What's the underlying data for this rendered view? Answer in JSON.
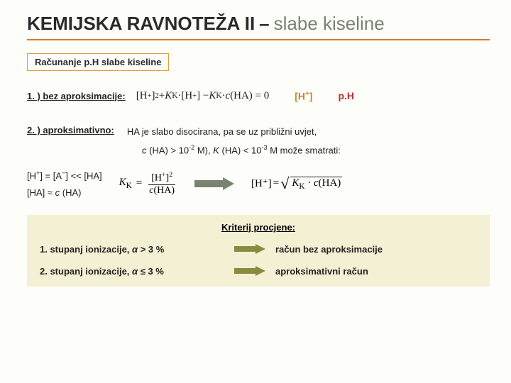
{
  "title": {
    "bold": "KEMIJSKA RAVNOTEŽA II",
    "dash": "–",
    "light": " slabe kiseline"
  },
  "subtitle": "Računanje p.H slabe kiseline",
  "sec1": {
    "label": "1. ) bez aproksimacije:",
    "formula": "[H⁺]² + K_K·[H⁺] − K_K·c(HA) = 0",
    "hplus": "[H⁺]",
    "ph": "p.H"
  },
  "sec2": {
    "label": "2. ) aproksimativno:",
    "text1": "HA je slabo disocirana, pa se uz približni uvjet,",
    "text2_a": "c",
    "text2_b": " (HA) > 10",
    "text2_c": "-2",
    "text2_d": " M), ",
    "text2_e": "K",
    "text2_f": " (HA) < 10",
    "text2_g": "-3",
    "text2_h": " M može smatrati:"
  },
  "approx": {
    "line1": "[H⁺] = [A⁻] << [HA]",
    "line2_a": "[HA] ≈ ",
    "line2_b": "c",
    "line2_c": " (HA)"
  },
  "kk": {
    "lhs": "K",
    "lhs_sub": "K",
    "eq": " = ",
    "top": "[H⁺]²",
    "bot_a": "c",
    "bot_b": "(HA)"
  },
  "result": {
    "lhs": "[H⁺]",
    "eq": " = ",
    "inside_a": "K",
    "inside_sub": "K",
    "inside_b": " · ",
    "inside_c": "c",
    "inside_d": "(HA)"
  },
  "criteria": {
    "title": "Kriterij procjene:",
    "r1_left_a": "1. stupanj ionizacije, ",
    "r1_left_b": "α",
    "r1_left_c": " > 3 %",
    "r1_right": "račun bez aproksimacije",
    "r2_left_a": "2. stupanj ionizacije, ",
    "r2_left_b": "α",
    "r2_left_c": " ≤ 3 %",
    "r2_right": "aproksimativni račun"
  },
  "colors": {
    "hr": "#d17a30",
    "box": "#e0a040",
    "olive": "#7a8270",
    "gold": "#c88a20",
    "red": "#c03030",
    "panel": "#f4f0d4",
    "arrow2": "#8a8a40"
  }
}
